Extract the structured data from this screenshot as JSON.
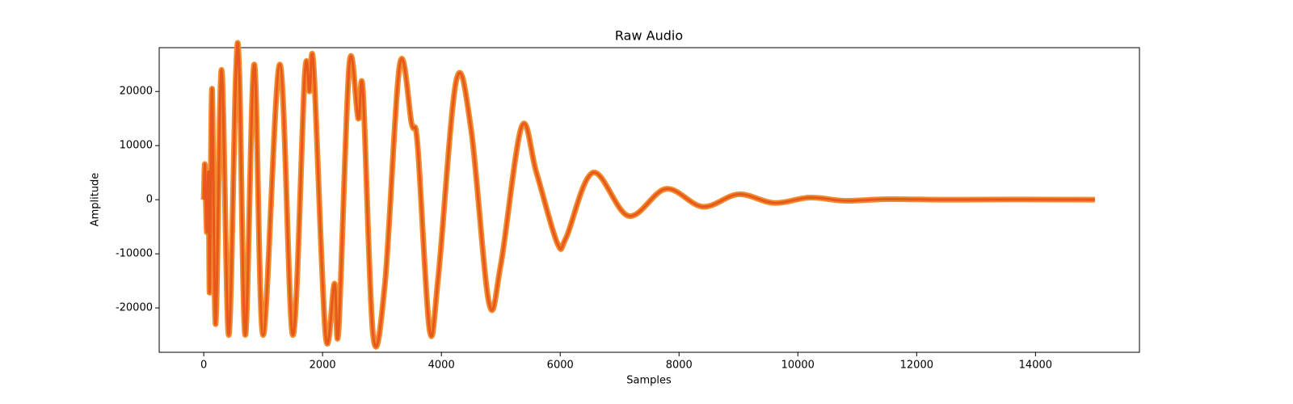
{
  "chart_data": {
    "type": "line",
    "title": "Raw Audio",
    "x_label": "Samples",
    "y_label": "Amplitude",
    "x": [
      0,
      20,
      50,
      80,
      100,
      140,
      200,
      300,
      420,
      540,
      600,
      700,
      850,
      1000,
      1280,
      1500,
      1700,
      1780,
      1850,
      2050,
      2200,
      2270,
      2450,
      2600,
      2680,
      2850,
      3050,
      3300,
      3500,
      3600,
      3800,
      3950,
      4250,
      4500,
      4800,
      5000,
      5350,
      5600,
      5950,
      6100,
      6550,
      7150,
      7780,
      8400,
      9000,
      9600,
      10200,
      10800,
      11500,
      12500,
      13500,
      15000
    ],
    "series": [
      {
        "name": "Amplitude",
        "color": "#e8571b",
        "values": [
          0,
          6500,
          -6000,
          5000,
          -17000,
          20500,
          -23000,
          24000,
          -25000,
          23000,
          23000,
          -25000,
          25000,
          -25000,
          25000,
          -25000,
          23000,
          20000,
          24500,
          -25000,
          -15500,
          -24000,
          25000,
          15000,
          20000,
          -25000,
          -15500,
          25000,
          14000,
          10000,
          -24000,
          -14000,
          22000,
          13000,
          -19000,
          -12000,
          13500,
          5000,
          -8000,
          -7000,
          5000,
          -3000,
          2000,
          -1300,
          1000,
          -600,
          400,
          -200,
          100,
          0,
          50,
          0
        ]
      }
    ],
    "xlim": [
      -750,
      15750
    ],
    "ylim": [
      -28200,
      28100
    ],
    "xticks": [
      0,
      2000,
      4000,
      6000,
      8000,
      10000,
      12000,
      14000
    ],
    "yticks": [
      -20000,
      -10000,
      0,
      10000,
      20000
    ],
    "grid": false
  }
}
